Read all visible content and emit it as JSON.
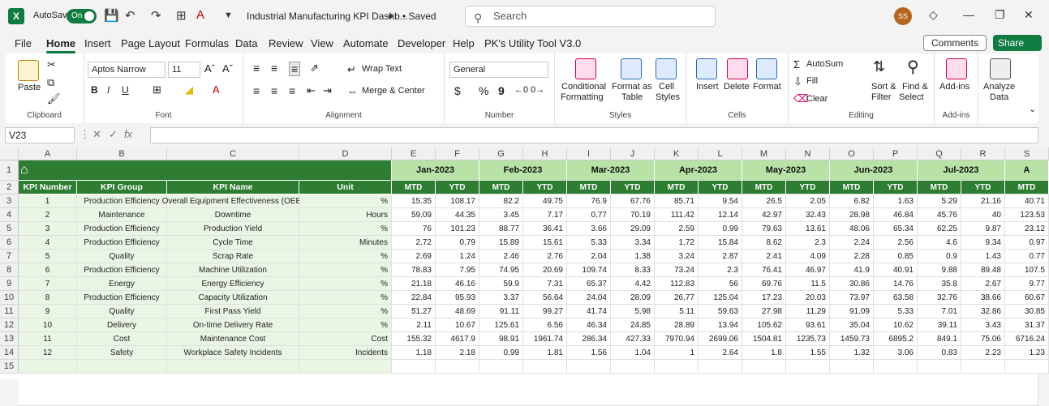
{
  "titlebar": {
    "logo": "X",
    "autosave_label": "AutoSave",
    "toggle_label": "On",
    "doc_title": "Industrial Manufacturing KPI Dashb...",
    "saved_label": "• Saved",
    "search_placeholder": "Search",
    "avatar_initials": "SS"
  },
  "tabs": [
    "File",
    "Home",
    "Insert",
    "Page Layout",
    "Formulas",
    "Data",
    "Review",
    "View",
    "Automate",
    "Developer",
    "Help",
    "PK's Utility Tool V3.0"
  ],
  "active_tab": "Home",
  "comments_label": "Comments",
  "share_label": "Share",
  "ribbon": {
    "clipboard": {
      "paste": "Paste",
      "label": "Clipboard"
    },
    "font": {
      "name": "Aptos Narrow",
      "size": "11",
      "label": "Font",
      "bold": "B",
      "italic": "I",
      "underline": "U"
    },
    "alignment": {
      "wrap": "Wrap Text",
      "merge": "Merge & Center",
      "label": "Alignment"
    },
    "number": {
      "format": "General",
      "label": "Number",
      "currency": "$",
      "percent": "%",
      "comma": "9"
    },
    "styles": {
      "cond1": "Conditional",
      "cond2": "Formatting",
      "fmt1": "Format as",
      "fmt2": "Table",
      "cell1": "Cell",
      "cell2": "Styles",
      "label": "Styles"
    },
    "cells": {
      "insert": "Insert",
      "delete": "Delete",
      "format": "Format",
      "label": "Cells"
    },
    "editing": {
      "autosum": "AutoSum",
      "fill": "Fill",
      "clear": "Clear",
      "sort1": "Sort &",
      "sort2": "Filter",
      "find1": "Find &",
      "find2": "Select",
      "label": "Editing"
    },
    "addins": {
      "addins": "Add-ins",
      "label": "Add-ins"
    },
    "analyze": {
      "l1": "Analyze",
      "l2": "Data"
    }
  },
  "formula_bar": {
    "cell_ref": "V23",
    "fx": "fx",
    "value": ""
  },
  "columns": [
    "A",
    "B",
    "C",
    "D",
    "E",
    "F",
    "G",
    "H",
    "I",
    "J",
    "K",
    "L",
    "M",
    "N",
    "O",
    "P",
    "Q",
    "R",
    "S"
  ],
  "rows": [
    "1",
    "2",
    "3",
    "4",
    "5",
    "6",
    "7",
    "8",
    "9",
    "10",
    "11",
    "12",
    "13",
    "14",
    "15"
  ],
  "headers": [
    "KPI Number",
    "KPI Group",
    "KPI Name",
    "Unit"
  ],
  "months": [
    "Jan-2023",
    "Feb-2023",
    "Mar-2023",
    "Apr-2023",
    "May-2023",
    "Jun-2023",
    "Jul-2023",
    "A"
  ],
  "sub": [
    "MTD",
    "YTD"
  ],
  "kpis": [
    {
      "n": "1",
      "group": "Production Efficiency",
      "name": "Overall Equipment Effectiveness (OEE)",
      "unit": "%",
      "v": [
        "15.35",
        "108.17",
        "82.2",
        "49.75",
        "76.9",
        "67.76",
        "85.71",
        "9.54",
        "26.5",
        "2.05",
        "6.82",
        "1.63",
        "5.29",
        "21.16",
        "40.71"
      ]
    },
    {
      "n": "2",
      "group": "Maintenance",
      "name": "Downtime",
      "unit": "Hours",
      "v": [
        "59.09",
        "44.35",
        "3.45",
        "7.17",
        "0.77",
        "70.19",
        "111.42",
        "12.14",
        "42.97",
        "32.43",
        "28.98",
        "46.84",
        "45.76",
        "40",
        "123.53"
      ]
    },
    {
      "n": "3",
      "group": "Production Efficiency",
      "name": "Production Yield",
      "unit": "%",
      "v": [
        "76",
        "101.23",
        "88.77",
        "36.41",
        "3.66",
        "29.09",
        "2.59",
        "0.99",
        "79.63",
        "13.61",
        "48.06",
        "65.34",
        "62.25",
        "9.87",
        "23.12"
      ]
    },
    {
      "n": "4",
      "group": "Production Efficiency",
      "name": "Cycle Time",
      "unit": "Minutes",
      "v": [
        "2.72",
        "0.79",
        "15.89",
        "15.61",
        "5.33",
        "3.34",
        "1.72",
        "15.84",
        "8.62",
        "2.3",
        "2.24",
        "2.56",
        "4.6",
        "9.34",
        "0.97"
      ]
    },
    {
      "n": "5",
      "group": "Quality",
      "name": "Scrap Rate",
      "unit": "%",
      "v": [
        "2.69",
        "1.24",
        "2.46",
        "2.76",
        "2.04",
        "1.38",
        "3.24",
        "2.87",
        "2.41",
        "4.09",
        "2.28",
        "0.85",
        "0.9",
        "1.43",
        "0.77"
      ]
    },
    {
      "n": "6",
      "group": "Production Efficiency",
      "name": "Machine Utilization",
      "unit": "%",
      "v": [
        "78.83",
        "7.95",
        "74.95",
        "20.69",
        "109.74",
        "8.33",
        "73.24",
        "2.3",
        "76.41",
        "46.97",
        "41.9",
        "40.91",
        "9.88",
        "89.48",
        "107.5"
      ]
    },
    {
      "n": "7",
      "group": "Energy",
      "name": "Energy Efficiency",
      "unit": "%",
      "v": [
        "21.18",
        "46.16",
        "59.9",
        "7.31",
        "65.37",
        "4.42",
        "112.83",
        "56",
        "69.76",
        "11.5",
        "30.86",
        "14.76",
        "35.8",
        "2.67",
        "9.77"
      ]
    },
    {
      "n": "8",
      "group": "Production Efficiency",
      "name": "Capacity Utilization",
      "unit": "%",
      "v": [
        "22.84",
        "95.93",
        "3.37",
        "56.64",
        "24.04",
        "28.09",
        "26.77",
        "125.04",
        "17.23",
        "20.03",
        "73.97",
        "63.58",
        "32.76",
        "38.66",
        "60.67"
      ]
    },
    {
      "n": "9",
      "group": "Quality",
      "name": "First Pass Yield",
      "unit": "%",
      "v": [
        "51.27",
        "48.69",
        "91.11",
        "99.27",
        "41.74",
        "5.98",
        "5.11",
        "59.63",
        "27.98",
        "11.29",
        "91.09",
        "5.33",
        "7.01",
        "32.86",
        "30.85"
      ]
    },
    {
      "n": "10",
      "group": "Delivery",
      "name": "On-time Delivery Rate",
      "unit": "%",
      "v": [
        "2.11",
        "10.67",
        "125.61",
        "6.56",
        "46.34",
        "24.85",
        "28.89",
        "13.94",
        "105.62",
        "93.61",
        "35.04",
        "10.62",
        "39.11",
        "3.43",
        "31.37"
      ]
    },
    {
      "n": "11",
      "group": "Cost",
      "name": "Maintenance Cost",
      "unit": "Cost",
      "v": [
        "155.32",
        "4617.9",
        "98.91",
        "1961.74",
        "286.34",
        "427.33",
        "7970.94",
        "2699.06",
        "1504.81",
        "1235.73",
        "1459.73",
        "6895.2",
        "849.1",
        "75.06",
        "6716.24"
      ]
    },
    {
      "n": "12",
      "group": "Safety",
      "name": "Workplace Safety Incidents",
      "unit": "Incidents",
      "v": [
        "1.18",
        "2.18",
        "0.99",
        "1.81",
        "1.56",
        "1.04",
        "1",
        "2.64",
        "1.8",
        "1.55",
        "1.32",
        "3.06",
        "0.83",
        "2.23",
        "1.23"
      ]
    }
  ]
}
